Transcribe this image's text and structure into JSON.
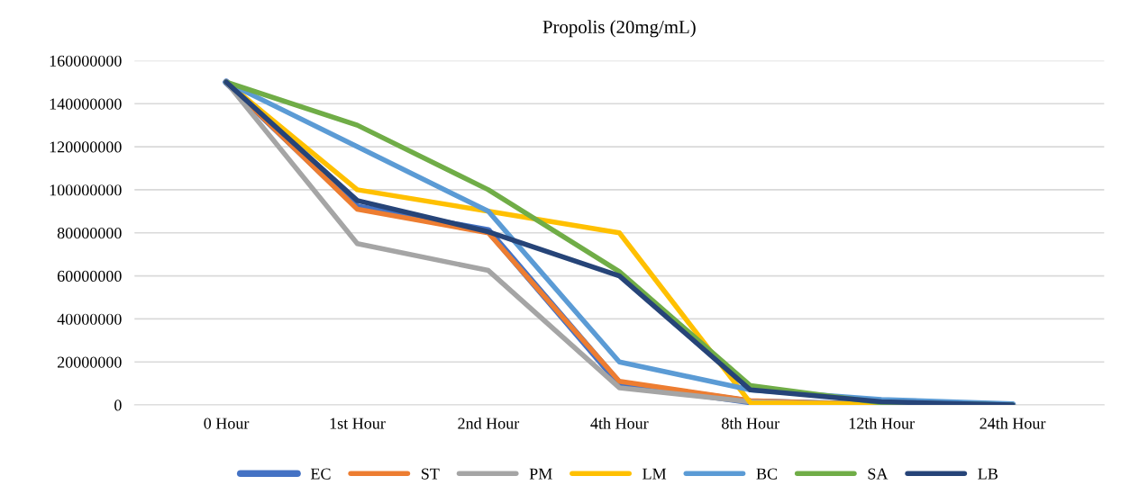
{
  "chart_data": {
    "type": "line",
    "title": "Propolis (20mg/mL)",
    "categories": [
      "0 Hour",
      "1st Hour",
      "2nd Hour",
      "4th Hour",
      "8th Hour",
      "12th Hour",
      "24th Hour"
    ],
    "series": [
      {
        "name": "EC",
        "color": "#4472c4",
        "values": [
          150000000,
          92000000,
          81000000,
          10000000,
          1500000,
          0,
          0
        ]
      },
      {
        "name": "ST",
        "color": "#ed7d31",
        "values": [
          150000000,
          91000000,
          80000000,
          11000000,
          2000000,
          0,
          0
        ]
      },
      {
        "name": "PM",
        "color": "#a5a5a5",
        "values": [
          150000000,
          75000000,
          62500000,
          8000000,
          1500000,
          0,
          0
        ]
      },
      {
        "name": "LM",
        "color": "#ffc000",
        "values": [
          150000000,
          100000000,
          90000000,
          80000000,
          1000000,
          500000,
          0
        ]
      },
      {
        "name": "BC",
        "color": "#5b9bd5",
        "values": [
          150000000,
          120000000,
          90000000,
          20000000,
          7000000,
          2500000,
          500000
        ]
      },
      {
        "name": "SA",
        "color": "#70ad47",
        "values": [
          150000000,
          130000000,
          100000000,
          62000000,
          9000000,
          1000000,
          0
        ]
      },
      {
        "name": "LB",
        "color": "#264478",
        "values": [
          150000000,
          95000000,
          80500000,
          60000000,
          7000000,
          1500000,
          0
        ]
      }
    ],
    "ylim": [
      0,
      160000000
    ],
    "yticks": [
      0,
      20000000,
      40000000,
      60000000,
      80000000,
      100000000,
      120000000,
      140000000,
      160000000
    ],
    "grid": "y",
    "legend": "bottom",
    "marker": "none",
    "line_style": "solid"
  }
}
